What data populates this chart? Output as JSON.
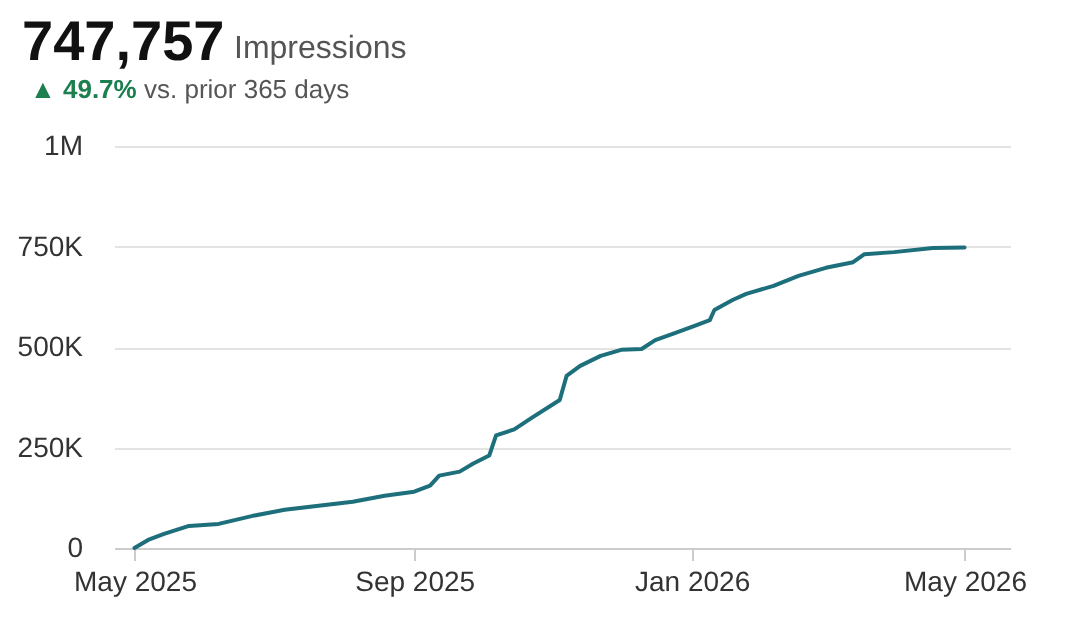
{
  "chart_data": {
    "type": "line",
    "title": "747,757",
    "subtitle": "vs. prior 365 days",
    "annotations": [
      "Impressions",
      "▲ 49.7%"
    ],
    "x": [
      "2025-05-01",
      "2025-05-07",
      "2025-05-14",
      "2025-05-25",
      "2025-06-07",
      "2025-06-22",
      "2025-07-06",
      "2025-07-21",
      "2025-08-05",
      "2025-08-19",
      "2025-09-01",
      "2025-09-08",
      "2025-09-12",
      "2025-09-21",
      "2025-09-27",
      "2025-10-04",
      "2025-10-07",
      "2025-10-15",
      "2025-10-23",
      "2025-11-04",
      "2025-11-07",
      "2025-11-13",
      "2025-11-22",
      "2025-12-01",
      "2025-12-10",
      "2025-12-16",
      "2025-12-24",
      "2026-01-02",
      "2026-01-09",
      "2026-01-11",
      "2026-01-19",
      "2026-01-25",
      "2026-02-06",
      "2026-02-17",
      "2026-03-01",
      "2026-03-13",
      "2026-03-18",
      "2026-03-31",
      "2026-04-17",
      "2026-05-01"
    ],
    "series": [
      {
        "color": "#1d6f7b",
        "values": [
          0,
          20000,
          35000,
          55000,
          60000,
          80000,
          95000,
          105000,
          115000,
          130000,
          140000,
          155000,
          180000,
          190000,
          210000,
          230000,
          280000,
          295000,
          325000,
          368000,
          428000,
          453000,
          478000,
          493000,
          495000,
          517000,
          533000,
          552000,
          567000,
          592000,
          617000,
          632000,
          652000,
          677000,
          697000,
          711000,
          731000,
          736000,
          746000,
          747757
        ]
      }
    ],
    "xlim": [
      "2025-04-22",
      "2026-05-21"
    ],
    "xticks": [
      {
        "value": "2025-05-01",
        "label": "May 2025"
      },
      {
        "value": "2025-09-01",
        "label": "Sep 2025"
      },
      {
        "value": "2026-01-01",
        "label": "Jan 2026"
      },
      {
        "value": "2026-05-01",
        "label": "May 2026"
      }
    ],
    "ylim": [
      0,
      1000000
    ],
    "yticks": [
      {
        "value": 0,
        "label": "0"
      },
      {
        "value": 250000,
        "label": "250K"
      },
      {
        "value": 500000,
        "label": "500K"
      },
      {
        "value": 750000,
        "label": "750K"
      },
      {
        "value": 1000000,
        "label": "1M"
      }
    ],
    "grid": "y",
    "marker": "none",
    "line_style": "solid"
  }
}
